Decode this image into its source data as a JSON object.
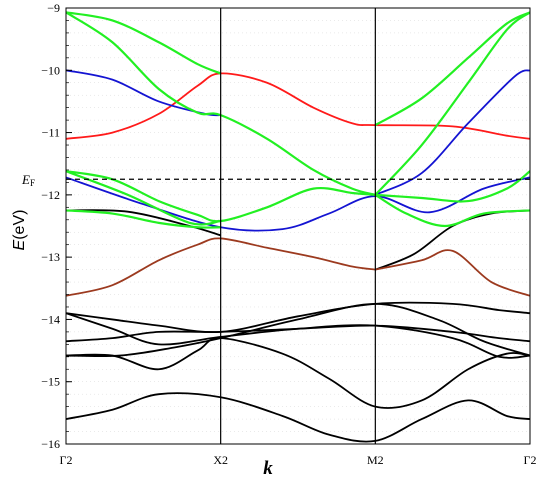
{
  "chart_data": {
    "type": "line",
    "title": "",
    "xlabel": "k",
    "ylabel": "E(eV)",
    "ylabel_italic": "E",
    "ylabel_unit": "(eV)",
    "ylim": [
      -16,
      -9
    ],
    "yticks": [
      -16,
      -15,
      -14,
      -13,
      -12,
      -11,
      -10,
      -9
    ],
    "ytick_labels": [
      "−16",
      "−15",
      "−14",
      "−13",
      "−12",
      "−11",
      "−10",
      "−9"
    ],
    "xlim": [
      0,
      3
    ],
    "kpoints": [
      {
        "label": "Γ2",
        "x": 0
      },
      {
        "label": "X2",
        "x": 1
      },
      {
        "label": "M2",
        "x": 2
      },
      {
        "label": "Γ2",
        "x": 3
      }
    ],
    "fermi_level": {
      "label_main": "E",
      "label_sub": "F",
      "value": -11.75
    },
    "colors": {
      "red": "#ff1a1a",
      "blue": "#1414d2",
      "green": "#22f022",
      "black": "#000000",
      "brown": "#9c3a1f"
    },
    "series": [
      {
        "color": "red",
        "x": [
          0,
          0.3,
          0.6,
          0.85,
          1.0,
          1.3,
          1.6,
          1.85,
          2.0,
          2.5,
          2.85,
          3.0
        ],
        "y": [
          -11.1,
          -11.0,
          -10.7,
          -10.25,
          -10.05,
          -10.2,
          -10.6,
          -10.85,
          -10.88,
          -10.9,
          -11.05,
          -11.1
        ]
      },
      {
        "color": "blue",
        "x": [
          0,
          0.3,
          0.6,
          0.9,
          1.0
        ],
        "y": [
          -10.0,
          -10.15,
          -10.5,
          -10.7,
          -10.72
        ]
      },
      {
        "color": "blue",
        "x": [
          2.0,
          2.3,
          2.6,
          2.9,
          3.0
        ],
        "y": [
          -12.0,
          -11.65,
          -10.85,
          -10.1,
          -10.0
        ]
      },
      {
        "color": "blue",
        "x": [
          0,
          0.5,
          1.0,
          1.4,
          1.7,
          2.0,
          2.35,
          2.7,
          3.0
        ],
        "y": [
          -11.72,
          -12.15,
          -12.52,
          -12.55,
          -12.3,
          -12.02,
          -12.28,
          -11.9,
          -11.72
        ]
      },
      {
        "color": "green",
        "x": [
          0,
          0.3,
          0.6,
          0.85,
          1.0
        ],
        "y": [
          -9.07,
          -9.2,
          -9.55,
          -9.9,
          -10.05
        ]
      },
      {
        "color": "green",
        "x": [
          0,
          0.3,
          0.6,
          0.85,
          1.0,
          1.3,
          1.6,
          1.85,
          2.0
        ],
        "y": [
          -9.07,
          -9.55,
          -10.3,
          -10.68,
          -10.72,
          -11.1,
          -11.6,
          -11.9,
          -12.0
        ]
      },
      {
        "color": "green",
        "x": [
          2.0,
          2.3,
          2.6,
          2.85,
          3.0
        ],
        "y": [
          -10.88,
          -10.45,
          -9.8,
          -9.25,
          -9.07
        ]
      },
      {
        "color": "green",
        "x": [
          2.0,
          2.3,
          2.6,
          2.85,
          3.0
        ],
        "y": [
          -12.0,
          -11.2,
          -10.2,
          -9.35,
          -9.07
        ]
      },
      {
        "color": "green",
        "x": [
          0,
          0.3,
          0.6,
          0.85,
          1.0,
          1.3,
          1.6,
          1.85,
          2.0
        ],
        "y": [
          -11.62,
          -11.75,
          -12.1,
          -12.32,
          -12.42,
          -12.2,
          -11.9,
          -11.97,
          -12.0
        ]
      },
      {
        "color": "green",
        "x": [
          0,
          0.4,
          0.8,
          1.0
        ],
        "y": [
          -11.62,
          -12.0,
          -12.45,
          -12.42
        ]
      },
      {
        "color": "green",
        "x": [
          0,
          0.3,
          0.6,
          0.85,
          1.0
        ],
        "y": [
          -12.25,
          -12.3,
          -12.45,
          -12.52,
          -12.52
        ]
      },
      {
        "color": "green",
        "x": [
          2.0,
          2.3,
          2.6,
          2.85,
          3.0
        ],
        "y": [
          -12.0,
          -12.05,
          -12.1,
          -11.9,
          -11.62
        ]
      },
      {
        "color": "green",
        "x": [
          2.0,
          2.2,
          2.45,
          2.7,
          3.0
        ],
        "y": [
          -12.0,
          -12.3,
          -12.5,
          -12.3,
          -12.25
        ]
      },
      {
        "color": "black",
        "x": [
          0,
          0.4,
          0.8,
          1.0
        ],
        "y": [
          -12.25,
          -12.27,
          -12.5,
          -12.65
        ]
      },
      {
        "color": "black",
        "x": [
          2.0,
          2.25,
          2.5,
          2.75,
          3.0
        ],
        "y": [
          -13.2,
          -12.95,
          -12.5,
          -12.3,
          -12.25
        ]
      },
      {
        "color": "brown",
        "x": [
          0,
          0.3,
          0.6,
          0.85,
          1.0,
          1.3,
          1.6,
          1.85,
          2.0
        ],
        "y": [
          -13.62,
          -13.45,
          -13.05,
          -12.8,
          -12.7,
          -12.85,
          -13.0,
          -13.15,
          -13.2
        ]
      },
      {
        "color": "brown",
        "x": [
          2.0,
          2.3,
          2.5,
          2.75,
          3.0
        ],
        "y": [
          -13.2,
          -13.05,
          -12.9,
          -13.4,
          -13.62
        ]
      },
      {
        "color": "black",
        "x": [
          0,
          0.3,
          0.6,
          1.0,
          1.5,
          2.0,
          2.5,
          2.8,
          3.0
        ],
        "y": [
          -13.9,
          -14.0,
          -14.1,
          -14.2,
          -13.95,
          -13.75,
          -13.75,
          -13.85,
          -13.9
        ]
      },
      {
        "color": "black",
        "x": [
          0,
          0.3,
          0.6,
          1.0,
          1.5,
          2.0,
          2.5,
          2.8,
          3.0
        ],
        "y": [
          -13.9,
          -14.15,
          -14.4,
          -14.28,
          -14.15,
          -14.1,
          -14.3,
          -14.6,
          -14.58
        ]
      },
      {
        "color": "black",
        "x": [
          0,
          0.3,
          0.6,
          1.0,
          1.5,
          2.0,
          2.5,
          2.8,
          3.0
        ],
        "y": [
          -14.35,
          -14.3,
          -14.2,
          -14.2,
          -14.15,
          -14.1,
          -14.2,
          -14.3,
          -14.35
        ]
      },
      {
        "color": "black",
        "x": [
          0,
          0.35,
          0.7,
          1.0,
          1.5,
          2.0,
          2.4,
          2.7,
          3.0
        ],
        "y": [
          -14.58,
          -14.58,
          -14.45,
          -14.3,
          -14.0,
          -13.75,
          -14.0,
          -14.35,
          -14.58
        ]
      },
      {
        "color": "black",
        "x": [
          0,
          0.3,
          0.6,
          0.85,
          1.0,
          1.4,
          1.7,
          2.0,
          2.3,
          2.6,
          2.85,
          3.0
        ],
        "y": [
          -14.58,
          -14.58,
          -14.8,
          -14.5,
          -14.3,
          -14.55,
          -14.95,
          -15.4,
          -15.3,
          -14.8,
          -14.55,
          -14.58
        ]
      },
      {
        "color": "black",
        "x": [
          0,
          0.3,
          0.6,
          1.0,
          1.4,
          1.7,
          2.0,
          2.3,
          2.6,
          2.85,
          3.0
        ],
        "y": [
          -15.6,
          -15.45,
          -15.2,
          -15.25,
          -15.55,
          -15.85,
          -15.95,
          -15.6,
          -15.3,
          -15.55,
          -15.6
        ]
      }
    ]
  }
}
